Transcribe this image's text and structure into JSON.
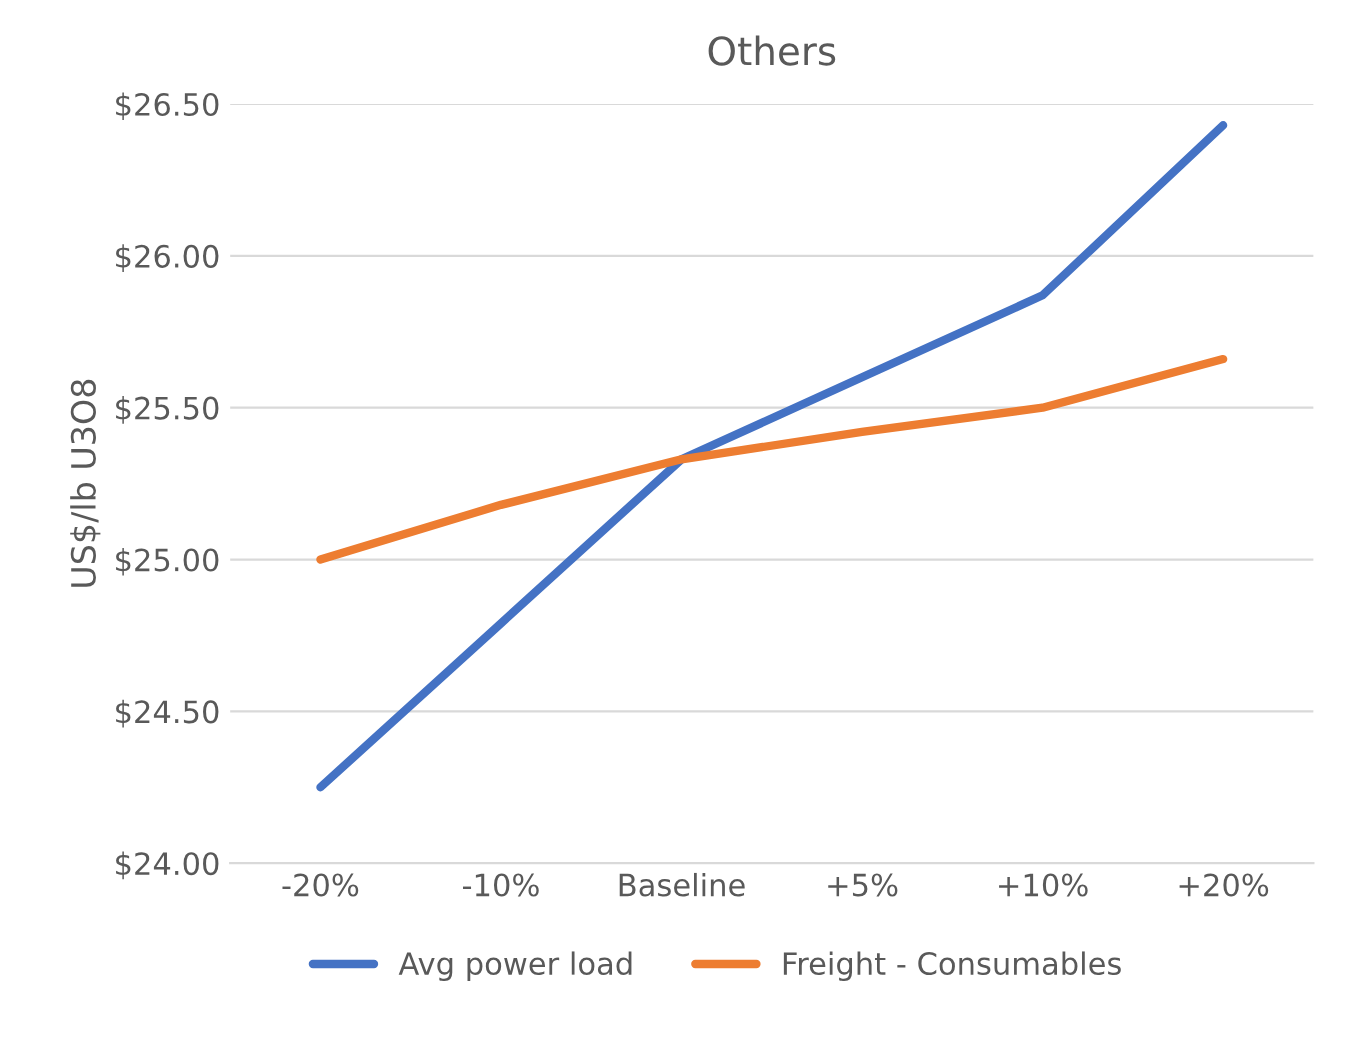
{
  "chart_data": {
    "type": "line",
    "title": "Others",
    "ylabel": "US$/lb U3O8",
    "categories": [
      "-20%",
      "-10%",
      "Baseline",
      "+5%",
      "+10%",
      "+20%"
    ],
    "series": [
      {
        "name": "Avg power load",
        "color": "#4472c4",
        "values": [
          24.25,
          24.79,
          25.33,
          25.6,
          25.87,
          26.43
        ]
      },
      {
        "name": "Freight - Consumables",
        "color": "#ed7d31",
        "values": [
          25.0,
          25.18,
          25.33,
          25.42,
          25.5,
          25.66
        ]
      }
    ],
    "ylim": [
      24.0,
      26.5
    ],
    "yticks": [
      {
        "value": 24.0,
        "label": "$24.00"
      },
      {
        "value": 24.5,
        "label": "$24.50"
      },
      {
        "value": 25.0,
        "label": "$25.00"
      },
      {
        "value": 25.5,
        "label": "$25.50"
      },
      {
        "value": 26.0,
        "label": "$26.00"
      },
      {
        "value": 26.5,
        "label": "$26.50"
      }
    ],
    "grid": "y",
    "legend": "bottom",
    "marker": "none",
    "line_style": "solid"
  }
}
